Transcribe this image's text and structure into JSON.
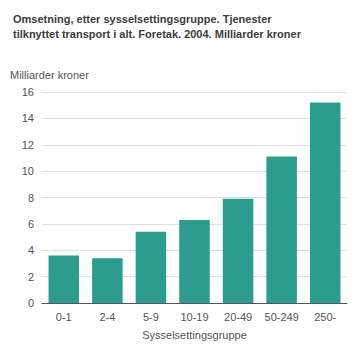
{
  "chart_data": {
    "type": "bar",
    "title": "Omsetning, etter sysselsettingsgruppe. Tjenester\ntilknyttet transport i alt. Foretak. 2004. Milliarder kroner",
    "ylabel": "Milliarder kroner",
    "xlabel": "Sysselsettingsgruppe",
    "categories": [
      "0-1",
      "2-4",
      "5-9",
      "10-19",
      "20-49",
      "50-249",
      "250-"
    ],
    "values": [
      3.6,
      3.4,
      5.4,
      6.3,
      7.9,
      11.1,
      15.2
    ],
    "color": "#2a9d8f",
    "ylim": [
      0,
      16
    ],
    "yticks": [
      0,
      2,
      4,
      6,
      8,
      10,
      12,
      14,
      16
    ],
    "grid": true
  }
}
